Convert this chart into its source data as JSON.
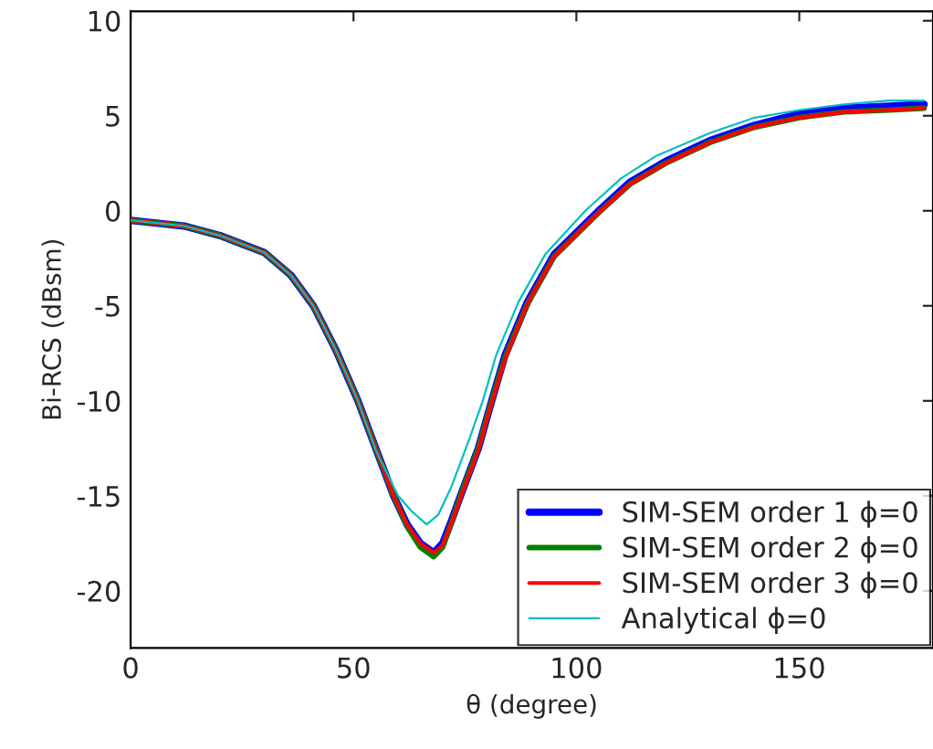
{
  "chart_data": {
    "type": "line",
    "xlabel": "θ (degree)",
    "ylabel": "Bi-RCS (dBsm)",
    "xlim": [
      0,
      180
    ],
    "ylim": [
      -23,
      10.5
    ],
    "xticks": [
      0,
      50,
      100,
      150
    ],
    "yticks": [
      -20,
      -15,
      -10,
      -5,
      0,
      5,
      10
    ],
    "grid": false,
    "legend": "bottom right",
    "line_style": "solid",
    "marker": "none",
    "series": [
      {
        "name": "SIM-SEM order 1 ϕ=0",
        "color": "#0000ff",
        "x": [
          0,
          12,
          20,
          30,
          36,
          41,
          46,
          51,
          55,
          59,
          62,
          65,
          68,
          70,
          72,
          74,
          78,
          81,
          84,
          89,
          95,
          105,
          112,
          120,
          130,
          140,
          150,
          160,
          170,
          178
        ],
        "values": [
          -0.5,
          -0.8,
          -1.3,
          -2.2,
          -3.4,
          -5,
          -7.3,
          -10,
          -12.5,
          -15,
          -16.5,
          -17.5,
          -18,
          -17.5,
          -16.3,
          -15,
          -12.5,
          -10,
          -7.6,
          -4.8,
          -2.3,
          0,
          1.5,
          2.6,
          3.7,
          4.5,
          5.1,
          5.4,
          5.5,
          5.6
        ]
      },
      {
        "name": "SIM-SEM order 2 ϕ=0",
        "color": "#008000",
        "x": [
          0,
          12,
          20,
          30,
          36,
          41,
          46,
          51,
          55,
          59,
          62,
          65,
          68,
          70,
          72,
          74,
          78,
          81,
          84,
          89,
          95,
          105,
          112,
          120,
          130,
          140,
          150,
          160,
          170,
          178
        ],
        "values": [
          -0.5,
          -0.8,
          -1.3,
          -2.2,
          -3.4,
          -5,
          -7.3,
          -10,
          -12.5,
          -15,
          -16.6,
          -17.7,
          -18.2,
          -17.7,
          -16.4,
          -15,
          -12.5,
          -10,
          -7.7,
          -4.9,
          -2.4,
          -0.1,
          1.4,
          2.5,
          3.6,
          4.4,
          4.9,
          5.2,
          5.3,
          5.4
        ]
      },
      {
        "name": "SIM-SEM order 3 ϕ=0",
        "color": "#ff0000",
        "x": [
          0,
          12,
          20,
          30,
          36,
          41,
          46,
          51,
          55,
          59,
          62,
          65,
          68,
          70,
          72,
          74,
          78,
          81,
          84,
          89,
          95,
          105,
          112,
          120,
          130,
          140,
          150,
          160,
          170,
          178
        ],
        "values": [
          -0.5,
          -0.8,
          -1.3,
          -2.2,
          -3.4,
          -5,
          -7.3,
          -10,
          -12.5,
          -15,
          -16.5,
          -17.5,
          -18,
          -17.6,
          -16.4,
          -15.1,
          -12.6,
          -10.1,
          -7.8,
          -4.9,
          -2.4,
          -0.1,
          1.4,
          2.5,
          3.6,
          4.4,
          4.9,
          5.2,
          5.3,
          5.4
        ]
      },
      {
        "name": "Analytical ϕ=0",
        "color": "#00bfbf",
        "x": [
          0,
          12,
          20,
          30,
          36,
          41,
          46,
          51,
          55,
          60,
          63,
          66.4,
          69,
          72,
          76,
          79,
          82,
          87,
          93,
          102,
          110,
          118,
          130,
          140,
          150,
          160,
          170,
          178
        ],
        "values": [
          -0.5,
          -0.8,
          -1.3,
          -2.2,
          -3.4,
          -5,
          -7.3,
          -10,
          -12.6,
          -15,
          -15.8,
          -16.5,
          -16,
          -14.5,
          -12,
          -10,
          -7.6,
          -4.8,
          -2.3,
          0,
          1.7,
          2.9,
          4.1,
          4.9,
          5.3,
          5.6,
          5.8,
          5.8
        ]
      }
    ]
  }
}
